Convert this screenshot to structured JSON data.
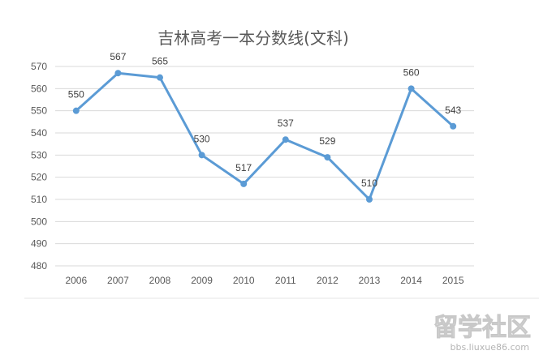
{
  "chart_data": {
    "type": "line",
    "title": "吉林高考一本分数线(文科)",
    "xlabel": "",
    "ylabel": "",
    "categories": [
      "2006",
      "2007",
      "2008",
      "2009",
      "2010",
      "2011",
      "2012",
      "2013",
      "2014",
      "2015"
    ],
    "series": [
      {
        "values": [
          550,
          567,
          565,
          530,
          517,
          537,
          529,
          510,
          560,
          543
        ],
        "color": "#5b9bd5"
      }
    ],
    "ylim": [
      480,
      570
    ],
    "yticks": [
      "480",
      "490",
      "500",
      "510",
      "520",
      "530",
      "540",
      "550",
      "560",
      "570"
    ],
    "grid": true,
    "legend": "none",
    "data_labels": true
  },
  "watermark": {
    "text": "留学社区",
    "url": "bbs.liuxue86.com"
  }
}
